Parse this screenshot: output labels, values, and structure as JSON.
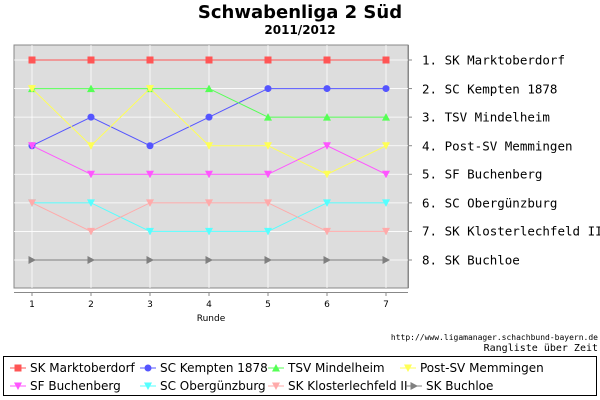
{
  "chart_data": {
    "type": "line",
    "title": "Schwabenliga 2 Süd",
    "subtitle": "2011/2012",
    "xlabel": "Runde",
    "ylabel": "",
    "x": [
      1,
      2,
      3,
      4,
      5,
      6,
      7
    ],
    "ylim": [
      1,
      8
    ],
    "y_inverted": true,
    "grid": true,
    "rank_labels": [
      "1. SK Marktoberdorf",
      "2. SC Kempten 1878",
      "3. TSV Mindelheim",
      "4. Post-SV Memmingen",
      "5. SF Buchenberg",
      "6. SC Obergünzburg",
      "7. SK Klosterlechfeld II",
      "8. SK Buchloe"
    ],
    "legend_position": "bottom",
    "series": [
      {
        "name": "SK Marktoberdorf",
        "color": "#ff5555",
        "marker": "square",
        "values": [
          1,
          1,
          1,
          1,
          1,
          1,
          1
        ]
      },
      {
        "name": "SC Kempten 1878",
        "color": "#5555ff",
        "marker": "circle",
        "values": [
          4,
          3,
          4,
          3,
          2,
          2,
          2
        ]
      },
      {
        "name": "TSV Mindelheim",
        "color": "#55ff55",
        "marker": "triangle-up",
        "values": [
          2,
          2,
          2,
          2,
          3,
          3,
          3
        ]
      },
      {
        "name": "Post-SV Memmingen",
        "color": "#ffff55",
        "marker": "triangle-down",
        "values": [
          2,
          4,
          2,
          4,
          4,
          5,
          4
        ]
      },
      {
        "name": "SF Buchenberg",
        "color": "#ff55ff",
        "marker": "triangle-down",
        "values": [
          4,
          5,
          5,
          5,
          5,
          4,
          5
        ]
      },
      {
        "name": "SC Obergünzburg",
        "color": "#55ffff",
        "marker": "triangle-down",
        "values": [
          6,
          6,
          7,
          7,
          7,
          6,
          6
        ]
      },
      {
        "name": "SK Klosterlechfeld II",
        "color": "#ffaaaa",
        "marker": "triangle-down",
        "values": [
          6,
          7,
          6,
          6,
          6,
          7,
          7
        ]
      },
      {
        "name": "SK Buchloe",
        "color": "#808080",
        "marker": "triangle-right",
        "values": [
          8,
          8,
          8,
          8,
          8,
          8,
          8
        ]
      }
    ]
  },
  "footer": {
    "source": "http://www.ligamanager.schachbund-bayern.de",
    "caption": "Rangliste über Zeit"
  }
}
